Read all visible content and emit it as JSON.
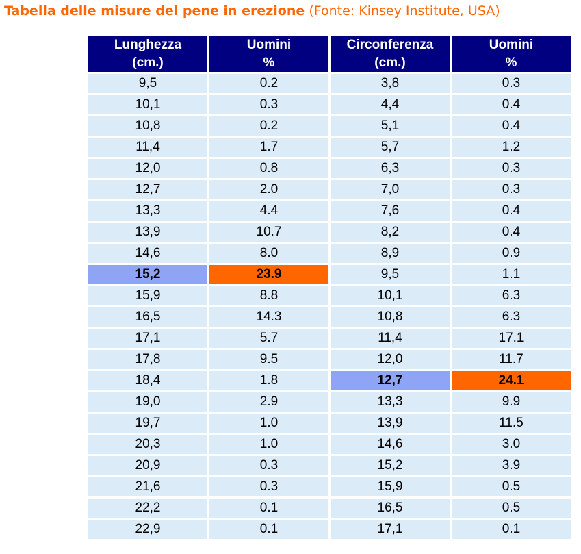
{
  "title": {
    "bold": "Tabella delle misure del pene in erezione",
    "source": "(Fonte: Kinsey Institute, USA)"
  },
  "colors": {
    "title": "#ff6600",
    "header_bg": "#000080",
    "cell_bg": "#dcebf8",
    "highlight_value": "#8fa4f4",
    "highlight_percent": "#ff6600"
  },
  "table": {
    "headers": [
      {
        "line1": "Lunghezza",
        "line2": "(cm.)"
      },
      {
        "line1": "Uomini",
        "line2": "%"
      },
      {
        "line1": "Circonferenza",
        "line2": "(cm.)"
      },
      {
        "line1": "Uomini",
        "line2": "%"
      }
    ],
    "rows": [
      [
        "9,5",
        "0.2",
        "3,8",
        "0.3"
      ],
      [
        "10,1",
        "0.3",
        "4,4",
        "0.4"
      ],
      [
        "10,8",
        "0.2",
        "5,1",
        "0.4"
      ],
      [
        "11,4",
        "1.7",
        "5,7",
        "1.2"
      ],
      [
        "12,0",
        "0.8",
        "6,3",
        "0.3"
      ],
      [
        "12,7",
        "2.0",
        "7,0",
        "0.3"
      ],
      [
        "13,3",
        "4.4",
        "7,6",
        "0.4"
      ],
      [
        "13,9",
        "10.7",
        "8,2",
        "0.4"
      ],
      [
        "14,6",
        "8.0",
        "8,9",
        "0.9"
      ],
      [
        "15,2",
        "23.9",
        "9,5",
        "1.1"
      ],
      [
        "15,9",
        "8.8",
        "10,1",
        "6.3"
      ],
      [
        "16,5",
        "14.3",
        "10,8",
        "6.3"
      ],
      [
        "17,1",
        "5.7",
        "11,4",
        "17.1"
      ],
      [
        "17,8",
        "9.5",
        "12,0",
        "11.7"
      ],
      [
        "18,4",
        "1.8",
        "12,7",
        "24.1"
      ],
      [
        "19,0",
        "2.9",
        "13,3",
        "9.9"
      ],
      [
        "19,7",
        "1.0",
        "13,9",
        "11.5"
      ],
      [
        "20,3",
        "1.0",
        "14,6",
        "3.0"
      ],
      [
        "20,9",
        "0.3",
        "15,2",
        "3.9"
      ],
      [
        "21,6",
        "0.3",
        "15,9",
        "0.5"
      ],
      [
        "22,2",
        "0.1",
        "16,5",
        "0.5"
      ],
      [
        "22,9",
        "0.1",
        "17,1",
        "0.1"
      ]
    ],
    "highlights": [
      {
        "row": 9,
        "cols": [
          0,
          1
        ]
      },
      {
        "row": 14,
        "cols": [
          2,
          3
        ]
      }
    ]
  }
}
